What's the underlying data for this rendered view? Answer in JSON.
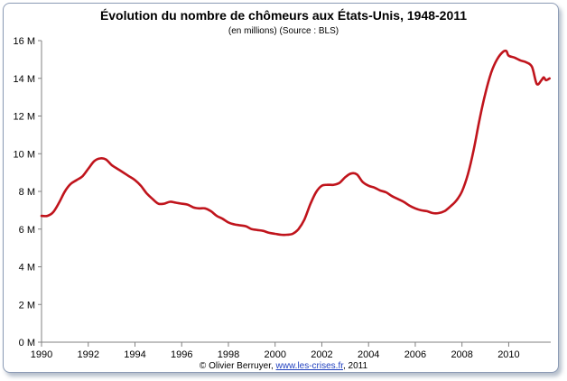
{
  "header": {
    "title": "Évolution du nombre de chômeurs aux États-Unis, 1948-2011",
    "subtitle": "(en millions) (Source : BLS)"
  },
  "footer": {
    "credit_prefix": "© Olivier Berruyer,",
    "credit_link": "www.les-crises.fr",
    "credit_suffix": ", 2011"
  },
  "chart_data": {
    "type": "line",
    "title": "Évolution du nombre de chômeurs aux États-Unis, 1948-2011",
    "subtitle": "(en millions) (Source : BLS)",
    "xlabel": "",
    "ylabel": "",
    "xlim": [
      1990,
      2011.8
    ],
    "ylim": [
      0,
      16
    ],
    "x_ticks": [
      1990,
      1992,
      1994,
      1996,
      1998,
      2000,
      2002,
      2004,
      2006,
      2008,
      2010
    ],
    "x_tick_labels": [
      "1990",
      "1992",
      "1994",
      "1996",
      "1998",
      "2000",
      "2002",
      "2004",
      "2006",
      "2008",
      "2010"
    ],
    "y_ticks": [
      0,
      2,
      4,
      6,
      8,
      10,
      12,
      14,
      16
    ],
    "y_tick_labels": [
      "0 M",
      "2 M",
      "4 M",
      "6 M",
      "8 M",
      "10 M",
      "12 M",
      "14 M",
      "16 M"
    ],
    "grid": false,
    "legend": "none",
    "line_color": "#c0141c",
    "series": [
      {
        "x": [
          1990.0,
          1990.25,
          1990.5,
          1990.75,
          1991.0,
          1991.25,
          1991.5,
          1991.75,
          1992.0,
          1992.25,
          1992.5,
          1992.75,
          1993.0,
          1993.25,
          1993.5,
          1993.75,
          1994.0,
          1994.25,
          1994.5,
          1994.75,
          1995.0,
          1995.25,
          1995.5,
          1995.75,
          1996.0,
          1996.25,
          1996.5,
          1996.75,
          1997.0,
          1997.25,
          1997.5,
          1997.75,
          1998.0,
          1998.25,
          1998.5,
          1998.75,
          1999.0,
          1999.25,
          1999.5,
          1999.75,
          2000.0,
          2000.25,
          2000.5,
          2000.75,
          2001.0,
          2001.25,
          2001.5,
          2001.75,
          2002.0,
          2002.25,
          2002.5,
          2002.75,
          2003.0,
          2003.25,
          2003.5,
          2003.75,
          2004.0,
          2004.25,
          2004.5,
          2004.75,
          2005.0,
          2005.25,
          2005.5,
          2005.75,
          2006.0,
          2006.25,
          2006.5,
          2006.75,
          2007.0,
          2007.25,
          2007.5,
          2007.75,
          2008.0,
          2008.25,
          2008.5,
          2008.75,
          2009.0,
          2009.25,
          2009.5,
          2009.75,
          2009.9,
          2010.0,
          2010.25,
          2010.5,
          2010.75,
          2011.0,
          2011.2,
          2011.4,
          2011.5,
          2011.6,
          2011.75
        ],
        "values": [
          6.7,
          6.7,
          6.9,
          7.4,
          8.0,
          8.4,
          8.6,
          8.8,
          9.2,
          9.6,
          9.75,
          9.7,
          9.4,
          9.2,
          9.0,
          8.8,
          8.6,
          8.3,
          7.9,
          7.6,
          7.35,
          7.35,
          7.45,
          7.4,
          7.35,
          7.3,
          7.15,
          7.1,
          7.1,
          6.95,
          6.7,
          6.55,
          6.35,
          6.25,
          6.2,
          6.15,
          6.0,
          5.95,
          5.9,
          5.8,
          5.75,
          5.7,
          5.7,
          5.75,
          6.0,
          6.5,
          7.3,
          7.95,
          8.3,
          8.35,
          8.35,
          8.45,
          8.75,
          8.95,
          8.9,
          8.5,
          8.3,
          8.2,
          8.05,
          7.95,
          7.75,
          7.6,
          7.45,
          7.25,
          7.1,
          7.0,
          6.95,
          6.85,
          6.85,
          6.95,
          7.2,
          7.5,
          8.0,
          8.9,
          10.2,
          11.8,
          13.2,
          14.3,
          15.0,
          15.4,
          15.45,
          15.2,
          15.1,
          14.95,
          14.85,
          14.6,
          13.7,
          13.9,
          14.05,
          13.9,
          14.0
        ]
      }
    ]
  }
}
